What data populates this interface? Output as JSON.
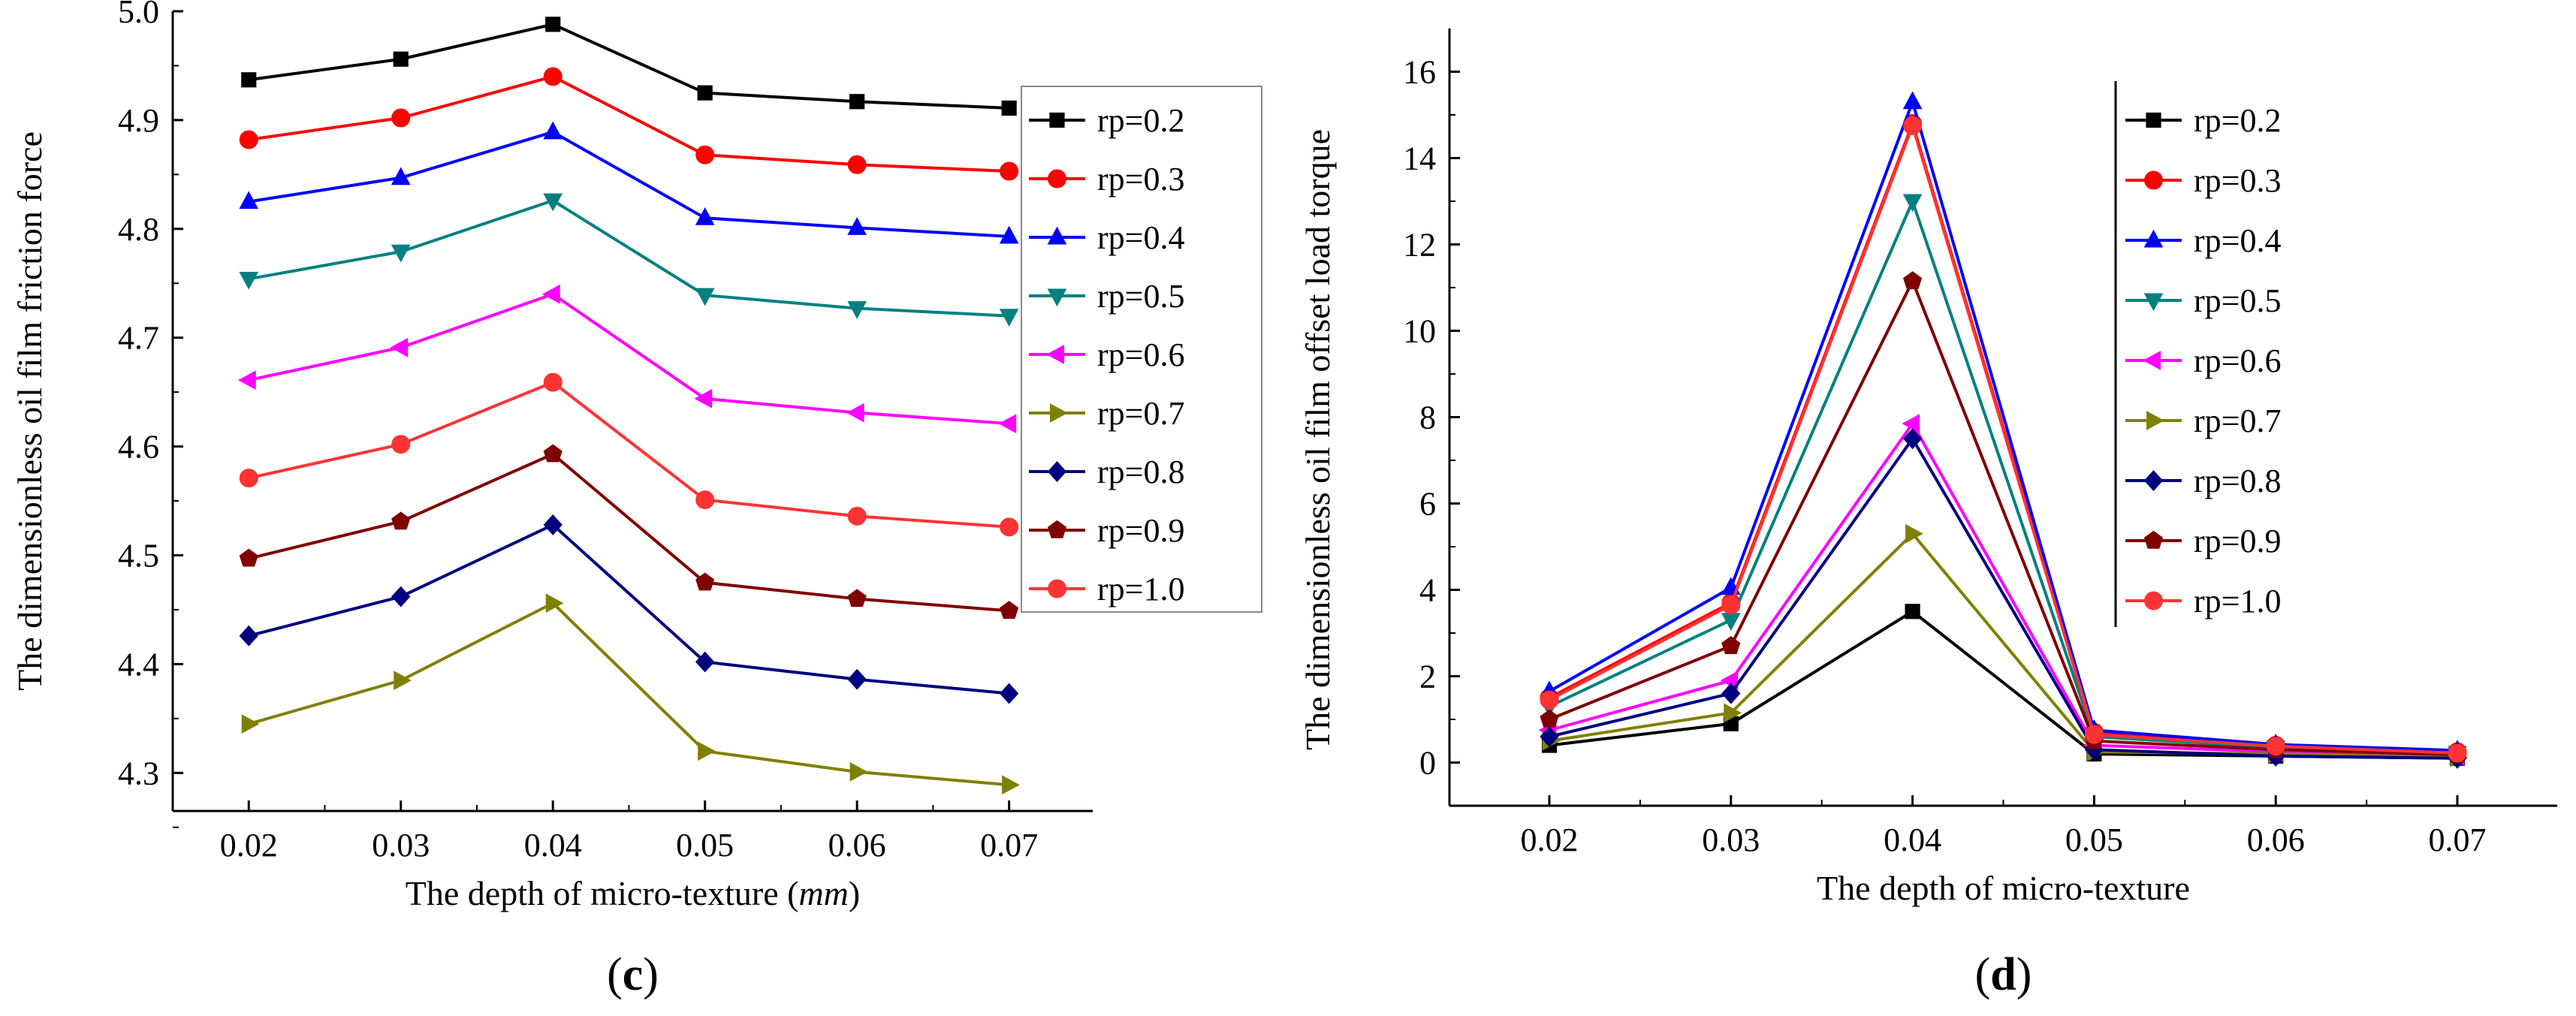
{
  "chart_data": [
    {
      "type": "line",
      "panel_label": "(c)",
      "xlabel": "The depth of micro-texture (mm)",
      "xlabel_main": "The depth of micro-texture (",
      "xlabel_unit": "mm",
      "xlabel_close": ")",
      "ylabel": "The dimensionless oil film friction force",
      "x": [
        0.02,
        0.03,
        0.04,
        0.05,
        0.06,
        0.07
      ],
      "x_tick_labels": [
        "0.02",
        "0.03",
        "0.04",
        "0.05",
        "0.06",
        "0.07"
      ],
      "xlim": [
        0.015,
        0.0755
      ],
      "ylim": [
        4.265,
        5.0
      ],
      "y_ticks": [
        4.3,
        4.4,
        4.5,
        4.6,
        4.7,
        4.8,
        4.9,
        5.0
      ],
      "y_tick_labels": [
        "4.3",
        "4.4",
        "4.5",
        "4.6",
        "4.7",
        "4.8",
        "4.9",
        "5.0"
      ],
      "legend_position": "right",
      "series": [
        {
          "name": "rp=0.2",
          "color": "#000000",
          "marker": "square",
          "values": [
            4.937,
            4.956,
            4.988,
            4.925,
            4.917,
            4.911
          ]
        },
        {
          "name": "rp=0.3",
          "color": "#ff0000",
          "marker": "circle",
          "values": [
            4.882,
            4.902,
            4.94,
            4.868,
            4.859,
            4.853
          ]
        },
        {
          "name": "rp=0.4",
          "color": "#0000ff",
          "marker": "triangle-up",
          "values": [
            4.825,
            4.847,
            4.889,
            4.81,
            4.801,
            4.793
          ]
        },
        {
          "name": "rp=0.5",
          "color": "#008080",
          "marker": "triangle-down",
          "values": [
            4.754,
            4.779,
            4.826,
            4.739,
            4.727,
            4.72
          ]
        },
        {
          "name": "rp=0.6",
          "color": "#ff00ff",
          "marker": "triangle-left",
          "values": [
            4.661,
            4.691,
            4.74,
            4.644,
            4.631,
            4.621
          ]
        },
        {
          "name": "rp=0.7",
          "color": "#808000",
          "marker": "triangle-right",
          "values": [
            4.345,
            4.385,
            4.456,
            4.32,
            4.301,
            4.289
          ]
        },
        {
          "name": "rp=0.8",
          "color": "#000080",
          "marker": "diamond",
          "values": [
            4.426,
            4.462,
            4.528,
            4.402,
            4.386,
            4.373
          ]
        },
        {
          "name": "rp=0.9",
          "color": "#800000",
          "marker": "pentagon",
          "values": [
            4.497,
            4.531,
            4.593,
            4.475,
            4.46,
            4.449
          ]
        },
        {
          "name": "rp=1.0",
          "color": "#ff3333",
          "marker": "circle",
          "values": [
            4.571,
            4.602,
            4.659,
            4.551,
            4.536,
            4.526
          ]
        }
      ]
    },
    {
      "type": "line",
      "panel_label": "(d)",
      "xlabel": "The depth of micro-texture",
      "ylabel": "The dimensionless oil film offset load torque",
      "x": [
        0.02,
        0.03,
        0.04,
        0.05,
        0.06,
        0.07
      ],
      "x_tick_labels": [
        "0.02",
        "0.03",
        "0.04",
        "0.05",
        "0.06",
        "0.07"
      ],
      "xlim": [
        0.0145,
        0.0755
      ],
      "ylim": [
        -1.0,
        17.0
      ],
      "y_ticks": [
        0,
        2,
        4,
        6,
        8,
        10,
        12,
        14,
        16
      ],
      "y_tick_labels": [
        "0",
        "2",
        "4",
        "6",
        "8",
        "10",
        "12",
        "14",
        "16"
      ],
      "legend_position": "top-right",
      "series": [
        {
          "name": "rp=0.2",
          "color": "#000000",
          "marker": "square",
          "values": [
            0.4,
            0.9,
            3.5,
            0.2,
            0.15,
            0.1
          ]
        },
        {
          "name": "rp=0.3",
          "color": "#ff0000",
          "marker": "circle",
          "values": [
            1.5,
            3.7,
            14.8,
            0.7,
            0.4,
            0.25
          ]
        },
        {
          "name": "rp=0.4",
          "color": "#0000ff",
          "marker": "triangle-up",
          "values": [
            1.65,
            4.05,
            15.3,
            0.75,
            0.42,
            0.28
          ]
        },
        {
          "name": "rp=0.5",
          "color": "#008080",
          "marker": "triangle-down",
          "values": [
            1.3,
            3.3,
            13.0,
            0.6,
            0.35,
            0.22
          ]
        },
        {
          "name": "rp=0.6",
          "color": "#ff00ff",
          "marker": "triangle-left",
          "values": [
            0.75,
            1.9,
            7.85,
            0.4,
            0.25,
            0.15
          ]
        },
        {
          "name": "rp=0.7",
          "color": "#808000",
          "marker": "triangle-right",
          "values": [
            0.5,
            1.15,
            5.3,
            0.25,
            0.2,
            0.12
          ]
        },
        {
          "name": "rp=0.8",
          "color": "#000080",
          "marker": "diamond",
          "values": [
            0.6,
            1.6,
            7.5,
            0.3,
            0.15,
            0.1
          ]
        },
        {
          "name": "rp=0.9",
          "color": "#800000",
          "marker": "pentagon",
          "values": [
            1.0,
            2.7,
            11.15,
            0.5,
            0.3,
            0.18
          ]
        },
        {
          "name": "rp=1.0",
          "color": "#ff3333",
          "marker": "circle",
          "values": [
            1.45,
            3.65,
            14.75,
            0.65,
            0.38,
            0.22
          ]
        }
      ]
    }
  ]
}
